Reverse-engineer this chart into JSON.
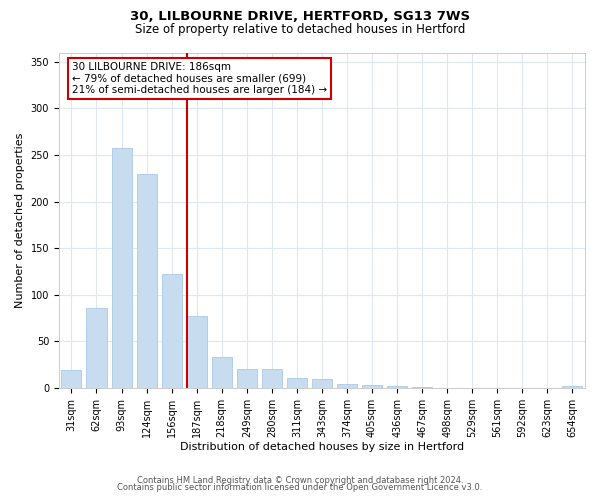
{
  "title_line1": "30, LILBOURNE DRIVE, HERTFORD, SG13 7WS",
  "title_line2": "Size of property relative to detached houses in Hertford",
  "xlabel": "Distribution of detached houses by size in Hertford",
  "ylabel": "Number of detached properties",
  "bar_labels": [
    "31sqm",
    "62sqm",
    "93sqm",
    "124sqm",
    "156sqm",
    "187sqm",
    "218sqm",
    "249sqm",
    "280sqm",
    "311sqm",
    "343sqm",
    "374sqm",
    "405sqm",
    "436sqm",
    "467sqm",
    "498sqm",
    "529sqm",
    "561sqm",
    "592sqm",
    "623sqm",
    "654sqm"
  ],
  "bar_values": [
    19,
    86,
    257,
    230,
    122,
    77,
    33,
    20,
    20,
    11,
    9,
    4,
    3,
    2,
    1,
    0,
    0,
    0,
    0,
    0,
    2
  ],
  "bar_color": "#c8dcf0",
  "bar_edgecolor": "#a8c8e8",
  "vline_color": "#cc0000",
  "vline_index": 5,
  "annotation_title": "30 LILBOURNE DRIVE: 186sqm",
  "annotation_line1": "← 79% of detached houses are smaller (699)",
  "annotation_line2": "21% of semi-detached houses are larger (184) →",
  "annotation_box_facecolor": "#ffffff",
  "annotation_box_edgecolor": "#cc0000",
  "ylim": [
    0,
    360
  ],
  "yticks": [
    0,
    50,
    100,
    150,
    200,
    250,
    300,
    350
  ],
  "footnote1": "Contains HM Land Registry data © Crown copyright and database right 2024.",
  "footnote2": "Contains public sector information licensed under the Open Government Licence v3.0.",
  "background_color": "#ffffff",
  "grid_color": "#dde8f0",
  "title1_fontsize": 9.5,
  "title2_fontsize": 8.5,
  "xlabel_fontsize": 8,
  "ylabel_fontsize": 8,
  "tick_fontsize": 7,
  "footnote_fontsize": 6,
  "bar_width": 0.8
}
